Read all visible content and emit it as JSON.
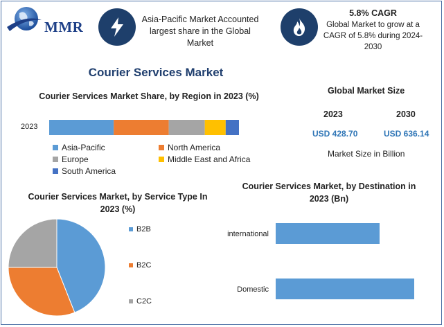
{
  "header": {
    "logo_text": "MMR",
    "box1_text": "Asia-Pacific Market Accounted largest share in the Global Market",
    "box2_title": "5.8% CAGR",
    "box2_text": "Global Market to grow at a CAGR of 5.8% during 2024-2030"
  },
  "main_title": "Courier Services Market",
  "market_size": {
    "title": "Global Market Size",
    "year1": "2023",
    "year2": "2030",
    "value1": "USD 428.70",
    "value2": "USD 636.14",
    "note": "Market Size in Billion"
  },
  "icons": {
    "lightning": "lightning-icon",
    "flame": "flame-icon",
    "globe": "globe-icon"
  },
  "colors": {
    "blue": "#5b9bd5",
    "orange": "#ed7d31",
    "gray": "#a5a5a5",
    "yellow": "#ffc000",
    "dark_blue": "#4472c4",
    "navy": "#1e3f6b"
  },
  "chart_data": [
    {
      "type": "bar",
      "orientation": "horizontal-stacked",
      "title": "Courier Services Market Share, by Region in 2023 (%)",
      "categories": [
        "2023"
      ],
      "series": [
        {
          "name": "Asia-Pacific",
          "values": [
            34
          ],
          "color": "#5b9bd5"
        },
        {
          "name": "North America",
          "values": [
            29
          ],
          "color": "#ed7d31"
        },
        {
          "name": "Europe",
          "values": [
            19
          ],
          "color": "#a5a5a5"
        },
        {
          "name": "Middle East and Africa",
          "values": [
            11
          ],
          "color": "#ffc000"
        },
        {
          "name": "South America",
          "values": [
            7
          ],
          "color": "#4472c4"
        }
      ],
      "legend": "bottom"
    },
    {
      "type": "pie",
      "title": "Courier Services Market, by Service Type In 2023 (%)",
      "categories": [
        "B2B",
        "B2C",
        "C2C"
      ],
      "values": [
        44,
        31,
        25
      ],
      "colors": [
        "#5b9bd5",
        "#ed7d31",
        "#a5a5a5"
      ],
      "legend": "right"
    },
    {
      "type": "bar",
      "orientation": "horizontal",
      "title": "Courier Services Market, by Destination in 2023 (Bn)",
      "categories": [
        "international",
        "Domestic"
      ],
      "values": [
        150,
        200
      ],
      "xlim": [
        0,
        200
      ],
      "color": "#5b9bd5"
    }
  ]
}
